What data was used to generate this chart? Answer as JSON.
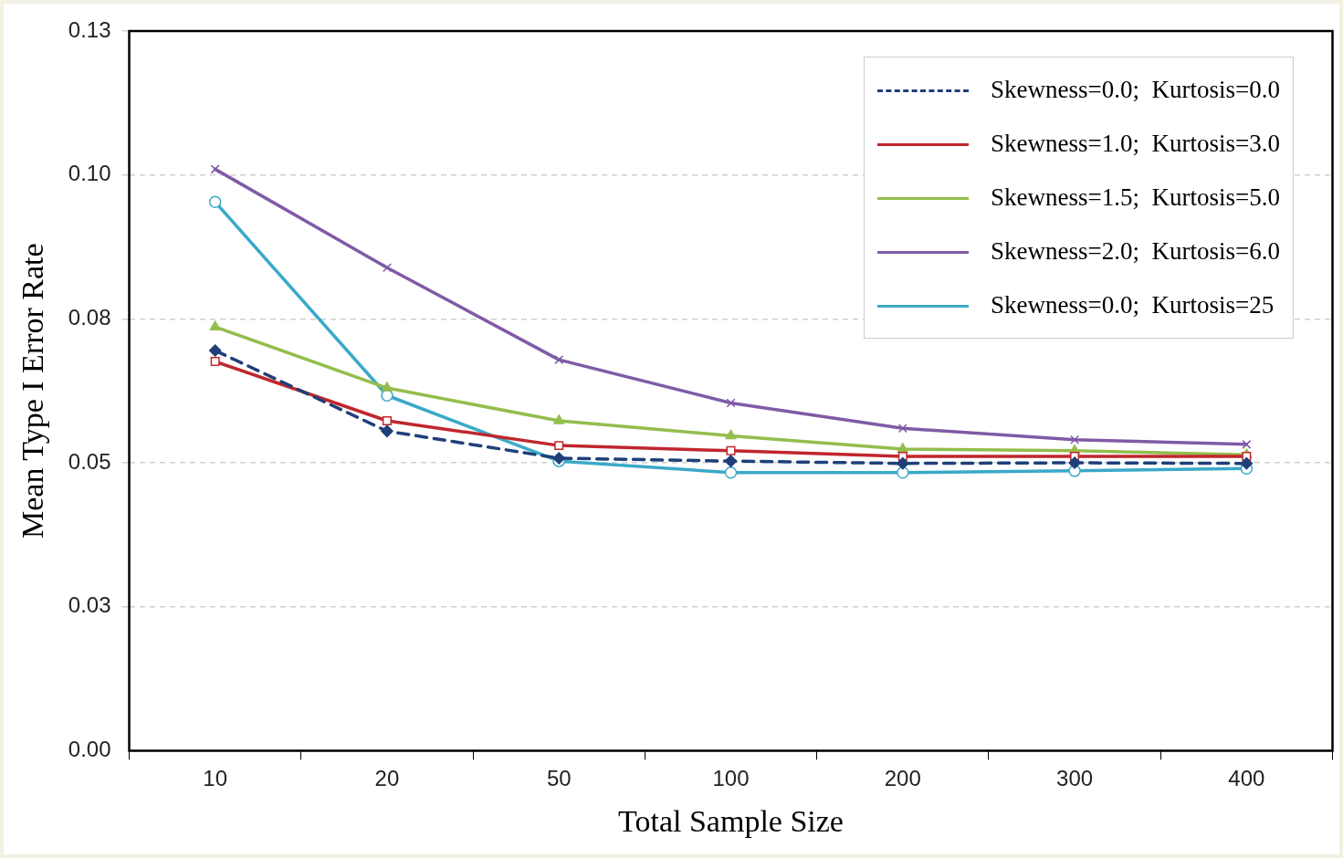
{
  "chart_data": {
    "type": "line",
    "xlabel": "Total Sample Size",
    "ylabel": "Mean Type I Error Rate",
    "categories": [
      "10",
      "20",
      "50",
      "100",
      "200",
      "300",
      "400"
    ],
    "ylim": [
      0,
      0.125
    ],
    "yticks": [
      {
        "value": 0,
        "label": "0.00"
      },
      {
        "value": 0.025,
        "label": "0.03"
      },
      {
        "value": 0.05,
        "label": "0.05"
      },
      {
        "value": 0.075,
        "label": "0.08"
      },
      {
        "value": 0.1,
        "label": "0.10"
      },
      {
        "value": 0.125,
        "label": "0.13"
      }
    ],
    "grid": "y",
    "legend": "top right",
    "series": [
      {
        "name": "Skewness=0.0;  Kurtosis=0.0",
        "color": "#1f3f7a",
        "marker": "diamond",
        "line_style": "dashed",
        "values": [
          0.0695,
          0.0555,
          0.0508,
          0.0503,
          0.0499,
          0.05,
          0.0499
        ]
      },
      {
        "name": "Skewness=1.0;  Kurtosis=3.0",
        "color": "#c0262d",
        "marker": "square",
        "line_style": "solid",
        "values": [
          0.0676,
          0.0573,
          0.053,
          0.0521,
          0.0511,
          0.0511,
          0.0511
        ]
      },
      {
        "name": "Skewness=1.5;  Kurtosis=5.0",
        "color": "#94bd4c",
        "marker": "triangle",
        "line_style": "solid",
        "values": [
          0.0736,
          0.063,
          0.0573,
          0.0547,
          0.0524,
          0.0521,
          0.0514
        ]
      },
      {
        "name": "Skewness=2.0;  Kurtosis=6.0",
        "color": "#7f5ba6",
        "marker": "cross",
        "line_style": "solid",
        "values": [
          0.101,
          0.0839,
          0.0679,
          0.0604,
          0.056,
          0.054,
          0.0532
        ]
      },
      {
        "name": "Skewness=0.0;  Kurtosis=25",
        "color": "#3aa9c9",
        "marker": "circle",
        "line_style": "solid",
        "values": [
          0.0953,
          0.0617,
          0.0503,
          0.0483,
          0.0483,
          0.0486,
          0.049
        ]
      }
    ]
  }
}
